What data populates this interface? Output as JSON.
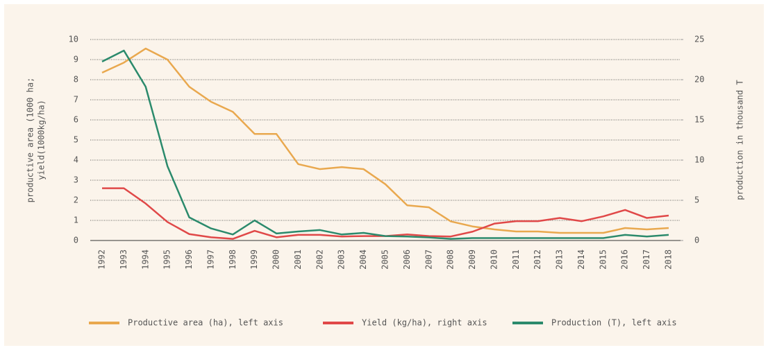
{
  "chart_data": {
    "type": "line",
    "ylabel": [
      "productive area (1000 ha;",
      "yield(1000kg/ha)"
    ],
    "y2label": "production in thousand T",
    "x": [
      "1992",
      "1993",
      "1994",
      "1995",
      "1996",
      "1997",
      "1998",
      "1999",
      "2000",
      "2001",
      "2002",
      "2003",
      "2004",
      "2005",
      "2006",
      "2007",
      "2008",
      "2009",
      "2010",
      "2011",
      "2012",
      "2013",
      "2014",
      "2015",
      "2016",
      "2017",
      "2018"
    ],
    "ylim": [
      0,
      10
    ],
    "yticks": [
      0,
      1,
      2,
      3,
      4,
      5,
      6,
      7,
      8,
      9,
      10
    ],
    "y2lim": [
      0,
      25
    ],
    "y2ticks": [
      0,
      5,
      10,
      15,
      20,
      25
    ],
    "grid": true,
    "legend": "bottom",
    "series": [
      {
        "name": "Productive area (ha), left axis",
        "color": "#e9a84e",
        "values": [
          8.35,
          8.85,
          9.55,
          9.0,
          7.65,
          6.9,
          6.4,
          5.3,
          5.3,
          3.8,
          3.55,
          3.65,
          3.55,
          2.8,
          1.75,
          1.65,
          0.95,
          0.7,
          0.55,
          0.45,
          0.45,
          0.38,
          0.38,
          0.38,
          0.62,
          0.55,
          0.62
        ]
      },
      {
        "name": "Yield (kg/ha), right axis",
        "color": "#e04848",
        "axis": "y2",
        "values": [
          6.5,
          6.5,
          4.6,
          2.3,
          0.8,
          0.4,
          0.2,
          1.2,
          0.4,
          0.7,
          0.7,
          0.5,
          0.55,
          0.55,
          0.75,
          0.55,
          0.5,
          1.1,
          2.1,
          2.4,
          2.4,
          2.8,
          2.4,
          3.0,
          3.8,
          2.8,
          3.1
        ]
      },
      {
        "name": "Production (T), left axis",
        "color": "#2b8a6c",
        "values": [
          8.9,
          9.45,
          7.65,
          3.7,
          1.15,
          0.6,
          0.3,
          1.0,
          0.35,
          0.45,
          0.52,
          0.3,
          0.38,
          0.22,
          0.2,
          0.15,
          0.08,
          0.12,
          0.12,
          0.12,
          0.12,
          0.12,
          0.12,
          0.12,
          0.28,
          0.2,
          0.28
        ]
      }
    ]
  }
}
